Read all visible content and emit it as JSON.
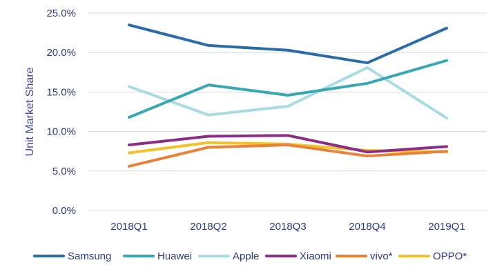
{
  "chart_data": {
    "type": "line",
    "title": "",
    "xlabel": "",
    "ylabel": "Unit Market Share",
    "categories": [
      "2018Q1",
      "2018Q2",
      "2018Q3",
      "2018Q4",
      "2019Q1"
    ],
    "ylim": [
      0,
      25
    ],
    "yticks": [
      "0.0%",
      "5.0%",
      "10.0%",
      "15.0%",
      "20.0%",
      "25.0%"
    ],
    "ytick_values": [
      0,
      5,
      10,
      15,
      20,
      25
    ],
    "grid": true,
    "legend_position": "bottom",
    "series": [
      {
        "name": "Samsung",
        "color": "#2b6ca8",
        "values": [
          23.5,
          20.9,
          20.3,
          18.7,
          23.1
        ]
      },
      {
        "name": "Huawei",
        "color": "#3aa7b5",
        "values": [
          11.8,
          15.9,
          14.6,
          16.1,
          19.0
        ]
      },
      {
        "name": "Apple",
        "color": "#a9dbe3",
        "values": [
          15.7,
          12.1,
          13.2,
          18.1,
          11.7
        ]
      },
      {
        "name": "Xiaomi",
        "color": "#8b2c86",
        "values": [
          8.3,
          9.4,
          9.5,
          7.4,
          8.1
        ]
      },
      {
        "name": "vivo*",
        "color": "#e8823a",
        "values": [
          5.6,
          8.0,
          8.3,
          6.9,
          7.5
        ]
      },
      {
        "name": "OPPO*",
        "color": "#f2c12e",
        "values": [
          7.3,
          8.6,
          8.4,
          7.6,
          7.4
        ]
      }
    ]
  }
}
